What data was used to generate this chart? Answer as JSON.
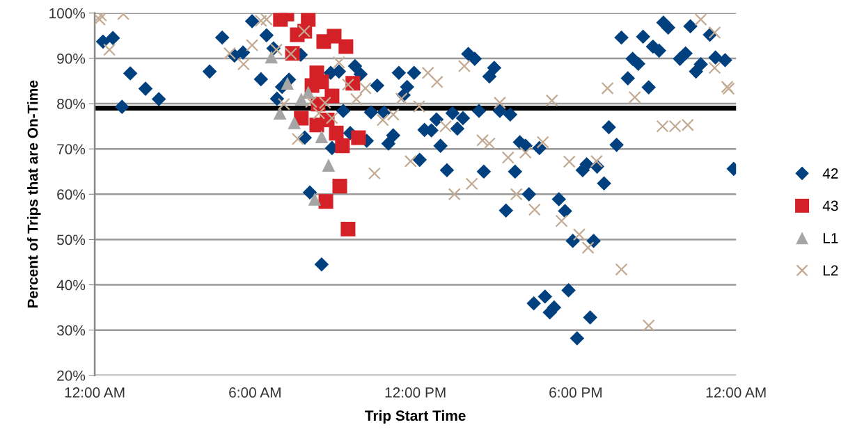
{
  "chart_data": {
    "type": "scatter",
    "xlabel": "Trip Start Time",
    "ylabel": "Percent of Trips that are On-Time",
    "xlim": [
      0,
      24
    ],
    "xticks": [
      {
        "value": 0,
        "label": "12:00 AM"
      },
      {
        "value": 6,
        "label": "6:00 AM"
      },
      {
        "value": 12,
        "label": "12:00 PM"
      },
      {
        "value": 18,
        "label": "6:00 PM"
      },
      {
        "value": 24,
        "label": "12:00 AM"
      }
    ],
    "ylim": [
      20,
      100
    ],
    "yticks": [
      {
        "value": 20,
        "label": "20%"
      },
      {
        "value": 30,
        "label": "30%"
      },
      {
        "value": 40,
        "label": "40%"
      },
      {
        "value": 50,
        "label": "50%"
      },
      {
        "value": 60,
        "label": "60%"
      },
      {
        "value": 70,
        "label": "70%"
      },
      {
        "value": 80,
        "label": "80%"
      },
      {
        "value": 90,
        "label": "90%"
      },
      {
        "value": 100,
        "label": "100%"
      }
    ],
    "grid": "y",
    "legend": "right",
    "ref_lines": [
      {
        "axis": "y",
        "value": 79,
        "color": "#000000"
      }
    ],
    "series": [
      {
        "name": "42",
        "color": "#00407f",
        "marker": "diamond",
        "x": [
          0.31,
          0.68,
          1.02,
          1.33,
          1.9,
          2.4,
          4.3,
          4.77,
          5.23,
          5.55,
          5.89,
          6.43,
          6.22,
          6.69,
          6.82,
          7.01,
          7.71,
          7.27,
          8.83,
          9.14,
          9.74,
          9.95,
          10.57,
          11.38,
          11.95,
          11.69,
          11.56,
          9.3,
          10.34,
          10.83,
          12.79,
          12.34,
          12.6,
          13.39,
          13.78,
          13.57,
          14.38,
          7.86,
          8.88,
          9.56,
          10.18,
          10.99,
          11.17,
          12.94,
          12.16,
          13.18,
          14.56,
          8.05,
          8.49,
          13.98,
          14.22,
          14.77,
          14.95,
          15.16,
          15.55,
          15.91,
          16.12,
          16.64,
          15.73,
          15.39,
          16.25,
          17.37,
          17.6,
          18.26,
          18.41,
          18.8,
          19.06,
          19.24,
          19.53,
          19.71,
          20.13,
          20.34,
          19.95,
          20.73,
          20.52,
          20.89,
          21.12,
          21.28,
          21.46,
          22.29,
          23.02,
          21.9,
          22.11,
          22.5,
          22.68,
          23.23,
          23.59,
          23.91,
          17.89,
          18.67,
          17.73,
          16.85,
          16.43,
          17.19,
          17.03,
          18.54,
          18.05
        ],
        "values": [
          93.7,
          94.5,
          79.3,
          86.7,
          83.3,
          81.0,
          87.1,
          94.6,
          90.6,
          91.3,
          98.2,
          95.1,
          85.4,
          92.2,
          81.1,
          83.7,
          90.8,
          85.3,
          86.8,
          87.1,
          88.3,
          86.5,
          84.0,
          86.8,
          86.8,
          83.7,
          81.9,
          78.4,
          78.1,
          78.1,
          76.5,
          74.2,
          74.1,
          77.9,
          76.8,
          74.5,
          78.4,
          72.5,
          70.2,
          73.5,
          71.8,
          71.2,
          73.0,
          70.7,
          67.6,
          65.3,
          65.0,
          60.4,
          44.5,
          91.0,
          89.9,
          86.0,
          87.9,
          78.4,
          77.6,
          71.5,
          70.7,
          70.2,
          65.0,
          56.4,
          60.0,
          58.9,
          56.3,
          65.3,
          66.6,
          66.1,
          62.4,
          74.8,
          70.9,
          94.6,
          89.9,
          88.8,
          85.6,
          83.6,
          94.8,
          92.6,
          91.7,
          97.9,
          96.8,
          97.1,
          95.2,
          89.9,
          91.1,
          87.1,
          88.7,
          90.2,
          89.6,
          65.6,
          49.7,
          49.7,
          38.8,
          37.4,
          35.9,
          35.0,
          33.9,
          32.8,
          28.2
        ]
      },
      {
        "name": "43",
        "color": "#d42027",
        "marker": "square",
        "x": [
          7.19,
          6.95,
          7.99,
          7.86,
          7.58,
          8.57,
          8.96,
          9.4,
          7.4,
          8.31,
          8.49,
          8.13,
          9.66,
          8.88,
          8.36,
          7.73,
          8.7,
          8.31,
          9.04,
          9.27,
          9.87,
          9.17,
          8.65,
          9.48
        ],
        "values": [
          99.8,
          98.6,
          98.6,
          96.0,
          95.2,
          93.7,
          94.9,
          92.6,
          91.1,
          86.8,
          84.8,
          84.0,
          84.5,
          81.7,
          79.9,
          76.8,
          76.4,
          75.3,
          73.5,
          70.7,
          72.5,
          61.8,
          58.4,
          52.3
        ]
      },
      {
        "name": "L1",
        "color": "#a5a5a5",
        "marker": "triangle",
        "x": [
          6.61,
          6.93,
          7.21,
          7.73,
          7.99,
          7.47,
          8.49,
          8.75,
          8.23
        ],
        "values": [
          90.3,
          77.9,
          84.5,
          81.0,
          82.5,
          75.8,
          72.7,
          66.4,
          58.9
        ]
      },
      {
        "name": "L2",
        "color": "#c3ab93",
        "marker": "cross",
        "x": [
          0.23,
          0.18,
          1.07,
          0.55,
          5.05,
          5.57,
          5.89,
          6.22,
          6.43,
          6.8,
          7.34,
          7.84,
          9.14,
          7.08,
          7.6,
          8.1,
          8.39,
          8.62,
          8.88,
          9.48,
          9.79,
          10.13,
          10.78,
          11.17,
          11.48,
          12.14,
          12.47,
          12.81,
          13.13,
          13.83,
          14.51,
          14.77,
          11.82,
          10.47,
          14.11,
          13.46,
          15.16,
          17.11,
          19.19,
          20.21,
          22.68,
          23.2,
          23.2,
          23.67,
          23.72,
          21.25,
          21.72,
          22.19,
          15.47,
          16.12,
          16.77,
          17.76,
          18.78,
          15.78,
          16.46,
          17.47,
          18.13,
          18.46,
          19.71,
          20.73
        ],
        "values": [
          99.5,
          98.6,
          99.8,
          91.9,
          91.1,
          88.7,
          92.9,
          98.3,
          98.6,
          91.9,
          91.0,
          96.0,
          89.1,
          79.9,
          72.2,
          80.4,
          77.9,
          80.2,
          76.8,
          84.2,
          81.0,
          83.4,
          76.4,
          77.6,
          81.1,
          79.4,
          86.8,
          84.8,
          75.0,
          88.3,
          71.9,
          71.2,
          67.3,
          64.6,
          62.3,
          60.0,
          80.2,
          80.7,
          83.4,
          81.4,
          98.6,
          95.7,
          87.9,
          83.7,
          83.3,
          75.0,
          75.0,
          75.3,
          68.1,
          69.2,
          71.5,
          67.2,
          67.3,
          60.0,
          56.6,
          54.1,
          51.1,
          48.2,
          43.4,
          31.0
        ]
      }
    ]
  }
}
